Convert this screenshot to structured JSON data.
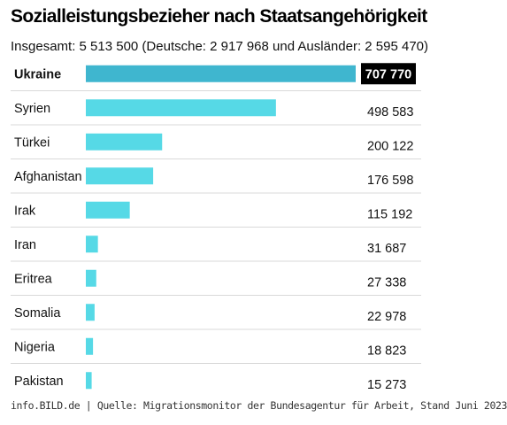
{
  "header": {
    "title": "Sozialleistungsbezieher nach Staatsangehörigkeit",
    "subtitle": "Insgesamt: 5 513 500 (Deutsche: 2 917 968 und Ausländer: 2 595 470)"
  },
  "footer": {
    "source": "info.BILD.de | Quelle: Migrationsmonitor der Bundesagentur für Arbeit, Stand Juni 2023"
  },
  "colors": {
    "highlight_bar": "#3fb6cf",
    "bar": "#56d9e6",
    "highlight_label_bg": "#000000",
    "highlight_label_text": "#ffffff",
    "grid": "#d9d9d9"
  },
  "chart_data": {
    "type": "bar",
    "orientation": "horizontal",
    "categories": [
      "Ukraine",
      "Syrien",
      "Türkei",
      "Afghanistan",
      "Irak",
      "Iran",
      "Eritrea",
      "Somalia",
      "Nigeria",
      "Pakistan"
    ],
    "values": [
      707770,
      498583,
      200122,
      176598,
      115192,
      31687,
      27338,
      22978,
      18823,
      15273
    ],
    "value_labels": [
      "707 770",
      "498 583",
      "200 122",
      "176 598",
      "115 192",
      "31 687",
      "27 338",
      "22 978",
      "18 823",
      "15 273"
    ],
    "highlight": "Ukraine",
    "xlim": [
      0,
      707770
    ],
    "grid": false
  }
}
